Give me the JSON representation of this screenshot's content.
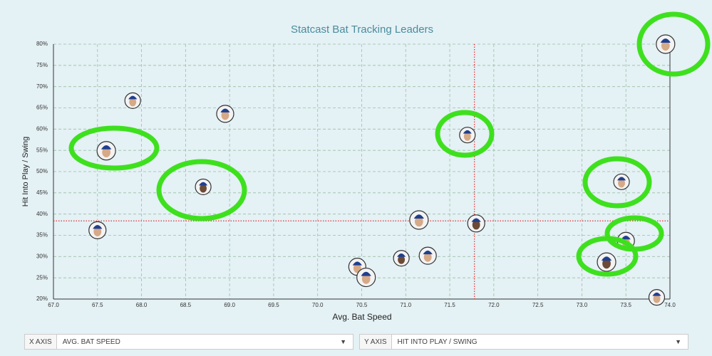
{
  "chart_data": {
    "type": "scatter",
    "title": "Statcast Bat Tracking Leaders",
    "x_label": "Avg. Bat Speed",
    "y_label": "Hit Into Play / Swing",
    "x": [
      67.9,
      68.95,
      67.6,
      68.7,
      67.5,
      73.95,
      71.7,
      71.8,
      71.15,
      73.45,
      73.5,
      73.28,
      73.85,
      70.45,
      70.55,
      70.95,
      71.25
    ],
    "values": [
      66.7,
      63.6,
      54.9,
      46.4,
      36.2,
      80,
      58.6,
      37.8,
      38.6,
      47.6,
      33.7,
      28.7,
      20.4,
      27.6,
      25.1,
      29.6,
      30.2
    ],
    "xlim": [
      67.0,
      74.0
    ],
    "ylim": [
      20,
      80
    ],
    "xticks": [
      {
        "value": 67.0,
        "label": "67.0"
      },
      67.5,
      {
        "value": 68.0,
        "label": "68.0"
      },
      68.5,
      {
        "value": 69.0,
        "label": "69.0"
      },
      69.5,
      {
        "value": 70.0,
        "label": "70.0"
      },
      70.5,
      {
        "value": 71.0,
        "label": "71.0"
      },
      71.5,
      {
        "value": 72.0,
        "label": "72.0"
      },
      72.5,
      {
        "value": 73.0,
        "label": "73.0"
      },
      73.5,
      {
        "value": 74.0,
        "label": "74.0"
      }
    ],
    "yticks": [
      {
        "value": 20,
        "label": "20%"
      },
      {
        "value": 25,
        "label": "25%"
      },
      {
        "value": 30,
        "label": "30%"
      },
      {
        "value": 35,
        "label": "35%"
      },
      {
        "value": 40,
        "label": "40%"
      },
      {
        "value": 45,
        "label": "45%"
      },
      {
        "value": 50,
        "label": "50%"
      },
      {
        "value": 55,
        "label": "55%"
      },
      {
        "value": 60,
        "label": "60%"
      },
      {
        "value": 65,
        "label": "65%"
      },
      {
        "value": 70,
        "label": "70%"
      },
      {
        "value": 75,
        "label": "75%"
      },
      {
        "value": 80,
        "label": "80%"
      }
    ],
    "grid": true,
    "reference_x": 71.78,
    "reference_y": 38.4
  },
  "controls": [
    {
      "label": "X AXIS",
      "value": "AVG. BAT SPEED"
    },
    {
      "label": "Y AXIS",
      "value": "HIT INTO PLAY / SWING"
    }
  ]
}
